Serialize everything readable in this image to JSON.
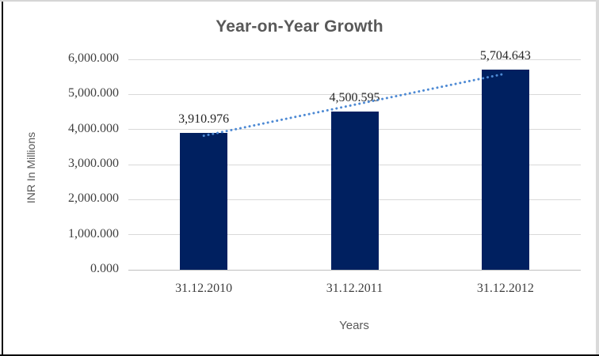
{
  "chart_data": {
    "type": "bar",
    "title": "Year-on-Year Growth",
    "xlabel": "Years",
    "ylabel": "INR In Millions",
    "categories": [
      "31.12.2010",
      "31.12.2011",
      "31.12.2012"
    ],
    "values": [
      3910.976,
      4500.595,
      5704.643
    ],
    "data_labels": [
      "3,910.976",
      "4,500.595",
      "5,704.643"
    ],
    "ylim": [
      0,
      6000
    ],
    "yticks": [
      {
        "value": 0,
        "label": "0.000"
      },
      {
        "value": 1000,
        "label": "1,000.000"
      },
      {
        "value": 2000,
        "label": "2,000.000"
      },
      {
        "value": 3000,
        "label": "3,000.000"
      },
      {
        "value": 4000,
        "label": "4,000.000"
      },
      {
        "value": 5000,
        "label": "5,000.000"
      },
      {
        "value": 6000,
        "label": "6,000.000"
      }
    ],
    "grid": true,
    "legend": "none",
    "trendline": {
      "type": "linear",
      "style": "dotted",
      "color": "#4e8ad4"
    },
    "colors": {
      "bar": "#002060",
      "gridline": "#d9d9d9",
      "zero_line": "#bfbfbf",
      "title_text": "#595959",
      "axis_title_text": "#595959",
      "tick_text": "#3f3f3f",
      "data_label_text": "#262626"
    }
  }
}
